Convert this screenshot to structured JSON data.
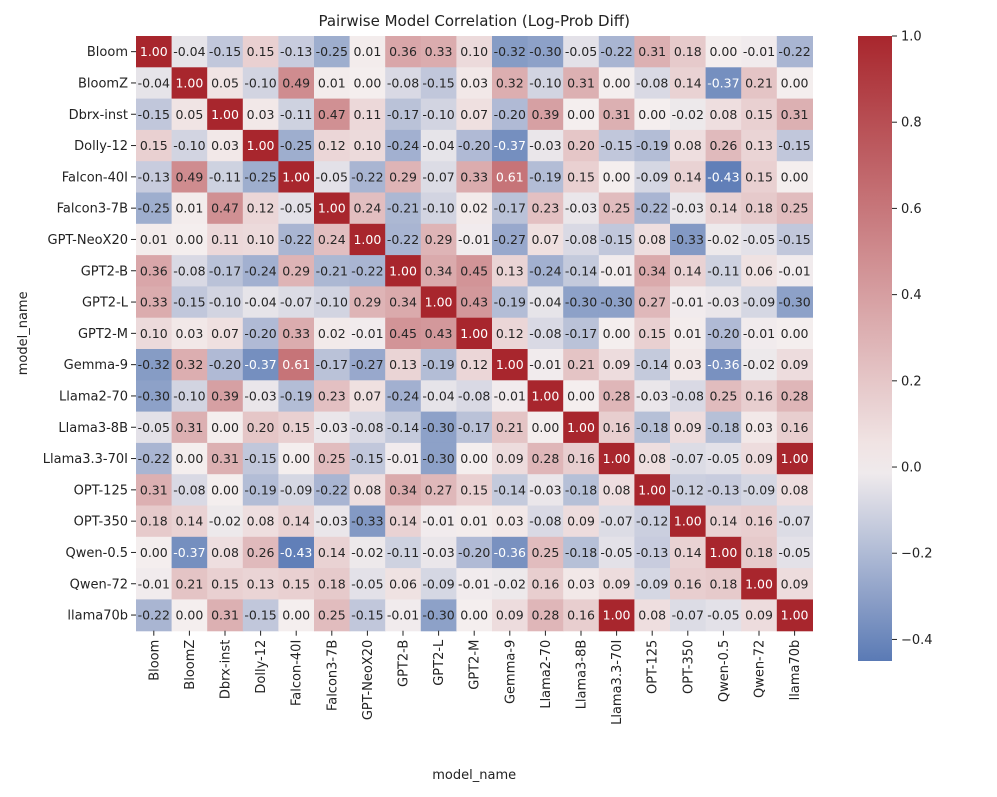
{
  "chart_data": {
    "type": "heatmap",
    "title": "Pairwise Model Correlation (Log-Prob Diff)",
    "xlabel": "model_name",
    "ylabel": "model_name",
    "labels": [
      "Bloom",
      "BloomZ",
      "Dbrx-inst",
      "Dolly-12",
      "Falcon-40I",
      "Falcon3-7B",
      "GPT-NeoX20",
      "GPT2-B",
      "GPT2-L",
      "GPT2-M",
      "Gemma-9",
      "Llama2-70",
      "Llama3-8B",
      "Llama3.3-70I",
      "OPT-125",
      "OPT-350",
      "Qwen-0.5",
      "Qwen-72",
      "llama70b"
    ],
    "values": [
      [
        1.0,
        -0.04,
        -0.15,
        0.15,
        -0.13,
        -0.25,
        0.01,
        0.36,
        0.33,
        0.1,
        -0.32,
        -0.3,
        -0.05,
        -0.22,
        0.31,
        0.18,
        0.0,
        -0.01,
        -0.22
      ],
      [
        -0.04,
        1.0,
        0.05,
        -0.1,
        0.49,
        0.01,
        0.0,
        -0.08,
        -0.15,
        0.03,
        0.32,
        -0.1,
        0.31,
        -0.0,
        -0.08,
        0.14,
        -0.37,
        0.21,
        -0.0
      ],
      [
        -0.15,
        0.05,
        1.0,
        0.03,
        -0.11,
        0.47,
        0.11,
        -0.17,
        -0.1,
        0.07,
        -0.2,
        0.39,
        0.0,
        0.31,
        0.0,
        -0.02,
        0.08,
        0.15,
        0.31
      ],
      [
        0.15,
        -0.1,
        0.03,
        1.0,
        -0.25,
        0.12,
        0.1,
        -0.24,
        -0.04,
        -0.2,
        -0.37,
        -0.03,
        0.2,
        -0.15,
        -0.19,
        0.08,
        0.26,
        0.13,
        -0.15
      ],
      [
        -0.13,
        0.49,
        -0.11,
        -0.25,
        1.0,
        -0.05,
        -0.22,
        0.29,
        -0.07,
        0.33,
        0.61,
        -0.19,
        0.15,
        -0.0,
        -0.09,
        0.14,
        -0.43,
        0.15,
        -0.0
      ],
      [
        -0.25,
        0.01,
        0.47,
        0.12,
        -0.05,
        1.0,
        0.24,
        -0.21,
        -0.1,
        0.02,
        -0.17,
        0.23,
        -0.03,
        0.25,
        -0.22,
        -0.03,
        0.14,
        0.18,
        0.25
      ],
      [
        0.01,
        0.0,
        0.11,
        0.1,
        -0.22,
        0.24,
        1.0,
        -0.22,
        0.29,
        -0.01,
        -0.27,
        0.07,
        -0.08,
        -0.15,
        0.08,
        -0.33,
        -0.02,
        -0.05,
        -0.15
      ],
      [
        0.36,
        -0.08,
        -0.17,
        -0.24,
        0.29,
        -0.21,
        -0.22,
        1.0,
        0.34,
        0.45,
        0.13,
        -0.24,
        -0.14,
        -0.01,
        0.34,
        0.14,
        -0.11,
        0.06,
        -0.01
      ],
      [
        0.33,
        -0.15,
        -0.1,
        -0.04,
        -0.07,
        -0.1,
        0.29,
        0.34,
        1.0,
        0.43,
        -0.19,
        -0.04,
        -0.3,
        -0.3,
        0.27,
        -0.01,
        -0.03,
        -0.09,
        -0.3
      ],
      [
        0.1,
        0.03,
        0.07,
        -0.2,
        0.33,
        0.02,
        -0.01,
        0.45,
        0.43,
        1.0,
        0.12,
        -0.08,
        -0.17,
        -0.0,
        0.15,
        0.01,
        -0.2,
        -0.01,
        -0.0
      ],
      [
        -0.32,
        0.32,
        -0.2,
        -0.37,
        0.61,
        -0.17,
        -0.27,
        0.13,
        -0.19,
        0.12,
        1.0,
        -0.01,
        0.21,
        0.09,
        -0.14,
        0.03,
        -0.36,
        -0.02,
        0.09
      ],
      [
        -0.3,
        -0.1,
        0.39,
        -0.03,
        -0.19,
        0.23,
        0.07,
        -0.24,
        -0.04,
        -0.08,
        -0.01,
        1.0,
        0.0,
        0.28,
        -0.03,
        -0.08,
        0.25,
        0.16,
        0.28
      ],
      [
        -0.05,
        0.31,
        0.0,
        0.2,
        0.15,
        -0.03,
        -0.08,
        -0.14,
        -0.3,
        -0.17,
        0.21,
        0.0,
        1.0,
        0.16,
        -0.18,
        0.09,
        -0.18,
        0.03,
        0.16
      ],
      [
        -0.22,
        -0.0,
        0.31,
        -0.15,
        -0.0,
        0.25,
        -0.15,
        -0.01,
        -0.3,
        -0.0,
        0.09,
        0.28,
        0.16,
        1.0,
        0.08,
        -0.07,
        -0.05,
        0.09,
        1.0
      ],
      [
        0.31,
        -0.08,
        0.0,
        -0.19,
        -0.09,
        -0.22,
        0.08,
        0.34,
        0.27,
        0.15,
        -0.14,
        -0.03,
        -0.18,
        0.08,
        1.0,
        -0.12,
        -0.13,
        -0.09,
        0.08
      ],
      [
        0.18,
        0.14,
        -0.02,
        0.08,
        0.14,
        -0.03,
        -0.33,
        0.14,
        -0.01,
        0.01,
        0.03,
        -0.08,
        0.09,
        -0.07,
        -0.12,
        1.0,
        0.14,
        0.16,
        -0.07
      ],
      [
        0.0,
        -0.37,
        0.08,
        0.26,
        -0.43,
        0.14,
        -0.02,
        -0.11,
        -0.03,
        -0.2,
        -0.36,
        0.25,
        -0.18,
        -0.05,
        -0.13,
        0.14,
        1.0,
        0.18,
        -0.05
      ],
      [
        -0.01,
        0.21,
        0.15,
        0.13,
        0.15,
        0.18,
        -0.05,
        0.06,
        -0.09,
        -0.01,
        -0.02,
        0.16,
        0.03,
        0.09,
        -0.09,
        0.16,
        0.18,
        1.0,
        0.09
      ],
      [
        -0.22,
        -0.0,
        0.31,
        -0.15,
        -0.0,
        0.25,
        -0.15,
        -0.01,
        -0.3,
        -0.0,
        0.09,
        0.28,
        0.16,
        1.0,
        0.08,
        -0.07,
        -0.05,
        0.09,
        1.0
      ]
    ],
    "vmin": -0.45,
    "vmax": 1.0,
    "colorbar_ticks": [
      1.0,
      0.8,
      0.6,
      0.4,
      0.2,
      0.0,
      -0.2,
      -0.4
    ],
    "colorbar_tick_labels": [
      "1.0",
      "0.8",
      "0.6",
      "0.4",
      "0.2",
      "0.0",
      "−0.2",
      "−0.4"
    ],
    "colormap": {
      "low": "#5a7ab5",
      "mid": "#f4eeee",
      "high": "#a8262d"
    }
  }
}
